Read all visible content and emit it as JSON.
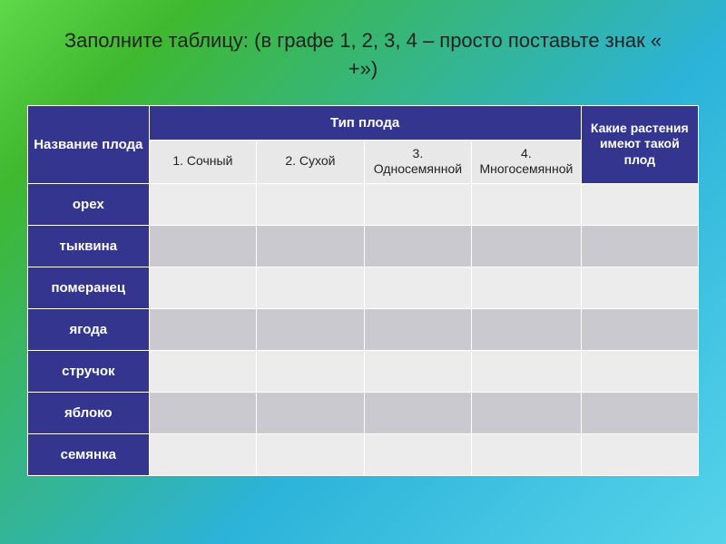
{
  "title": "Заполните таблицу: (в графе 1, 2, 3, 4 – просто поставьте знак « +»)",
  "headers": {
    "name": "Название плода",
    "type_group": "Тип плода",
    "plants": "Какие растения имеют такой плод",
    "sub": [
      "1. Сочный",
      "2. Сухой",
      "3. Односемянной",
      "4. Многосемянной"
    ]
  },
  "rows": [
    "орех",
    "тыквина",
    "померанец",
    "ягода",
    "стручок",
    "яблоко",
    "семянка"
  ],
  "table": {
    "header_bg": "#33358f",
    "header_fg": "#ffffff",
    "sub_bg": "#e8e8e8",
    "cell_a": "#ececec",
    "cell_b": "#c9c9cf",
    "title_fontsize": 22,
    "header_fontsize": 15,
    "sub_fontsize": 14
  }
}
